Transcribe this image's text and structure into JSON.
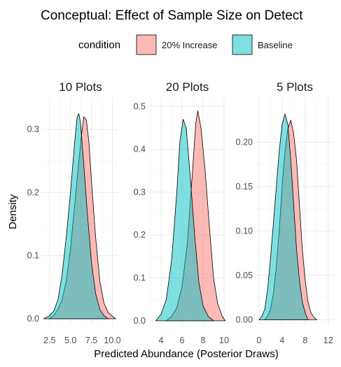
{
  "chart_data": {
    "type": "area",
    "subtype": "density",
    "title": "Conceptual: Effect of Sample Size on Detect",
    "xlabel": "Predicted Abundance (Posterior Draws)",
    "ylabel": "Density",
    "legend": {
      "title": "condition",
      "placement": "top",
      "entries": [
        {
          "name": "20% Increase",
          "color": "#F8766D"
        },
        {
          "name": "Baseline",
          "color": "#00BFC4"
        }
      ]
    },
    "fill_opacity": 0.5,
    "grid": true,
    "panels": [
      {
        "label": "10 Plots",
        "xlim": [
          1.6,
          10.8
        ],
        "ylim": [
          -0.01,
          0.35
        ],
        "xticks": [
          {
            "v": 2.5,
            "t": "2.5"
          },
          {
            "v": 5.0,
            "t": "5.0"
          },
          {
            "v": 7.5,
            "t": "7.5"
          },
          {
            "v": 10.0,
            "t": "10.0"
          }
        ],
        "yticks": [
          {
            "v": 0.0,
            "t": "0.0"
          },
          {
            "v": 0.1,
            "t": "0.1"
          },
          {
            "v": 0.2,
            "t": "0.2"
          },
          {
            "v": 0.3,
            "t": "0.3"
          }
        ],
        "series": [
          {
            "name": "20% Increase",
            "points": [
              [
                2.4,
                0.0
              ],
              [
                3.0,
                0.005
              ],
              [
                3.5,
                0.015
              ],
              [
                4.0,
                0.03
              ],
              [
                4.5,
                0.06
              ],
              [
                5.0,
                0.11
              ],
              [
                5.5,
                0.18
              ],
              [
                6.0,
                0.25
              ],
              [
                6.3,
                0.29
              ],
              [
                6.6,
                0.32
              ],
              [
                6.9,
                0.315
              ],
              [
                7.2,
                0.28
              ],
              [
                7.5,
                0.22
              ],
              [
                8.0,
                0.13
              ],
              [
                8.5,
                0.06
              ],
              [
                9.0,
                0.025
              ],
              [
                9.5,
                0.01
              ],
              [
                10.0,
                0.004
              ],
              [
                10.4,
                0.0
              ]
            ]
          },
          {
            "name": "Baseline",
            "points": [
              [
                1.8,
                0.0
              ],
              [
                2.5,
                0.005
              ],
              [
                3.0,
                0.012
              ],
              [
                3.5,
                0.03
              ],
              [
                4.0,
                0.07
              ],
              [
                4.5,
                0.13
              ],
              [
                5.0,
                0.2
              ],
              [
                5.5,
                0.28
              ],
              [
                5.8,
                0.32
              ],
              [
                6.0,
                0.325
              ],
              [
                6.2,
                0.31
              ],
              [
                6.5,
                0.26
              ],
              [
                7.0,
                0.17
              ],
              [
                7.5,
                0.09
              ],
              [
                8.0,
                0.04
              ],
              [
                8.5,
                0.015
              ],
              [
                9.0,
                0.005
              ],
              [
                9.5,
                0.0
              ]
            ]
          }
        ]
      },
      {
        "label": "20 Plots",
        "xlim": [
          2.8,
          10.2
        ],
        "ylim": [
          -0.01,
          0.52
        ],
        "xticks": [
          {
            "v": 4,
            "t": "4"
          },
          {
            "v": 6,
            "t": "6"
          },
          {
            "v": 8,
            "t": "8"
          },
          {
            "v": 10,
            "t": "10"
          }
        ],
        "yticks": [
          {
            "v": 0.0,
            "t": "0.0"
          },
          {
            "v": 0.1,
            "t": "0.1"
          },
          {
            "v": 0.2,
            "t": "0.2"
          },
          {
            "v": 0.3,
            "t": "0.3"
          },
          {
            "v": 0.4,
            "t": "0.4"
          },
          {
            "v": 0.5,
            "t": "0.5"
          }
        ],
        "series": [
          {
            "name": "20% Increase",
            "points": [
              [
                4.5,
                0.0
              ],
              [
                5.0,
                0.01
              ],
              [
                5.5,
                0.03
              ],
              [
                6.0,
                0.08
              ],
              [
                6.5,
                0.18
              ],
              [
                7.0,
                0.35
              ],
              [
                7.3,
                0.46
              ],
              [
                7.5,
                0.49
              ],
              [
                7.8,
                0.45
              ],
              [
                8.2,
                0.35
              ],
              [
                8.6,
                0.22
              ],
              [
                9.0,
                0.1
              ],
              [
                9.4,
                0.04
              ],
              [
                9.8,
                0.012
              ],
              [
                10.1,
                0.0
              ]
            ]
          },
          {
            "name": "Baseline",
            "points": [
              [
                3.5,
                0.0
              ],
              [
                4.0,
                0.015
              ],
              [
                4.5,
                0.05
              ],
              [
                5.0,
                0.14
              ],
              [
                5.5,
                0.3
              ],
              [
                5.8,
                0.42
              ],
              [
                6.1,
                0.47
              ],
              [
                6.4,
                0.45
              ],
              [
                6.8,
                0.33
              ],
              [
                7.2,
                0.2
              ],
              [
                7.6,
                0.09
              ],
              [
                8.0,
                0.035
              ],
              [
                8.5,
                0.01
              ],
              [
                9.0,
                0.0
              ]
            ]
          }
        ]
      },
      {
        "label": "5 Plots",
        "xlim": [
          -0.6,
          13.0
        ],
        "ylim": [
          -0.006,
          0.25
        ],
        "xticks": [
          {
            "v": 0,
            "t": "0"
          },
          {
            "v": 4,
            "t": "4"
          },
          {
            "v": 8,
            "t": "8"
          },
          {
            "v": 12,
            "t": "12"
          }
        ],
        "yticks": [
          {
            "v": 0.0,
            "t": "0.00"
          },
          {
            "v": 0.05,
            "t": "0.05"
          },
          {
            "v": 0.1,
            "t": "0.10"
          },
          {
            "v": 0.15,
            "t": "0.15"
          },
          {
            "v": 0.2,
            "t": "0.20"
          }
        ],
        "series": [
          {
            "name": "20% Increase",
            "points": [
              [
                1.0,
                0.0
              ],
              [
                1.5,
                0.004
              ],
              [
                2.0,
                0.012
              ],
              [
                2.5,
                0.03
              ],
              [
                3.0,
                0.06
              ],
              [
                3.5,
                0.1
              ],
              [
                4.0,
                0.15
              ],
              [
                4.5,
                0.19
              ],
              [
                5.0,
                0.215
              ],
              [
                5.5,
                0.225
              ],
              [
                6.0,
                0.21
              ],
              [
                6.5,
                0.18
              ],
              [
                7.0,
                0.13
              ],
              [
                7.5,
                0.08
              ],
              [
                8.0,
                0.045
              ],
              [
                8.5,
                0.02
              ],
              [
                9.0,
                0.008
              ],
              [
                9.5,
                0.003
              ],
              [
                10.0,
                0.0
              ]
            ]
          },
          {
            "name": "Baseline",
            "points": [
              [
                0.0,
                0.0
              ],
              [
                0.5,
                0.004
              ],
              [
                1.0,
                0.012
              ],
              [
                1.5,
                0.035
              ],
              [
                2.0,
                0.07
              ],
              [
                2.5,
                0.11
              ],
              [
                3.0,
                0.15
              ],
              [
                3.5,
                0.19
              ],
              [
                4.0,
                0.22
              ],
              [
                4.5,
                0.232
              ],
              [
                5.0,
                0.22
              ],
              [
                5.5,
                0.18
              ],
              [
                6.0,
                0.13
              ],
              [
                6.5,
                0.08
              ],
              [
                7.0,
                0.045
              ],
              [
                7.5,
                0.02
              ],
              [
                8.0,
                0.008
              ],
              [
                8.5,
                0.0
              ]
            ]
          }
        ]
      }
    ]
  }
}
